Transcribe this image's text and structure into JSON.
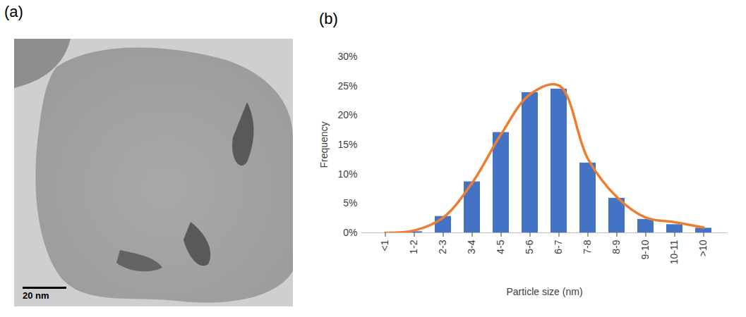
{
  "image_panel": {
    "panel_label": "(a)",
    "scale_bar": "20 nm"
  },
  "chart_data": {
    "panel_label": "(b)",
    "type": "bar",
    "x_label": "Particle size (nm)",
    "y_label": "Frequency",
    "categories": [
      "<1",
      "1-2",
      "2-3",
      "3-4",
      "4-5",
      "5-6",
      "6-7",
      "7-8",
      "8-9",
      "9-10",
      "10-11",
      ">10"
    ],
    "series": [
      {
        "type": "bar",
        "color": "#4472c4",
        "values": [
          0,
          0.2,
          2.8,
          8.7,
          17.1,
          23.9,
          24.5,
          11.9,
          5.9,
          2.3,
          1.4,
          0.8
        ]
      },
      {
        "type": "line",
        "color": "#ed7d31",
        "line_style": "smooth",
        "values": [
          0,
          0.4,
          2.6,
          8.5,
          16.8,
          23.6,
          25.1,
          12.6,
          6.1,
          2.6,
          1.8,
          0.9
        ]
      }
    ],
    "ylim": [
      0,
      30
    ],
    "yticks": [
      {
        "value": 0,
        "label": "0%"
      },
      {
        "value": 5,
        "label": "5%"
      },
      {
        "value": 10,
        "label": "10%"
      },
      {
        "value": 15,
        "label": "15%"
      },
      {
        "value": 20,
        "label": "20%"
      },
      {
        "value": 25,
        "label": "25%"
      },
      {
        "value": 30,
        "label": "30%"
      }
    ],
    "grid": false
  }
}
